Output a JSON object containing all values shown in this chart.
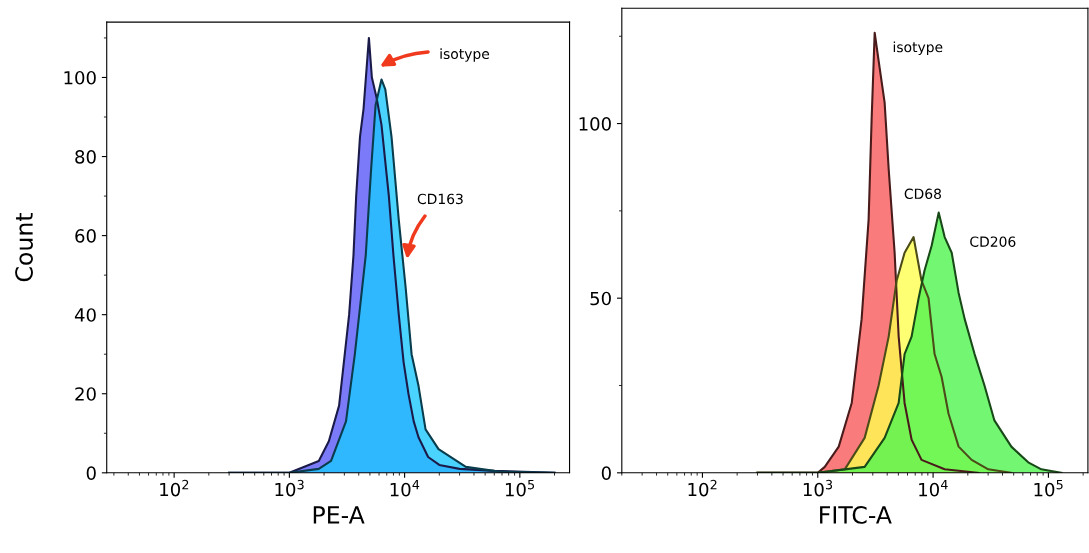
{
  "chart_data": [
    {
      "type": "area",
      "xlabel": "PE-A",
      "ylabel": "Count",
      "log": "x",
      "xlim": [
        26,
        270000
      ],
      "xticks": [
        {
          "value": 100,
          "label": "10$^{2}$"
        },
        {
          "value": 1000,
          "label": "10$^{3}$"
        },
        {
          "value": 10000,
          "label": "10$^{4}$"
        },
        {
          "value": 100000,
          "label": "10$^{5}$"
        }
      ],
      "ylim": [
        0,
        114
      ],
      "yticks": [
        0,
        20,
        40,
        60,
        80,
        100
      ],
      "grid": false,
      "series": [
        {
          "color": "#5a5af8",
          "x": [
            300,
            1000,
            1800,
            2200,
            2700,
            3300,
            3600,
            3800,
            4100,
            4400,
            4900,
            5200,
            5700,
            6300,
            7300,
            8000,
            8900,
            9800,
            10800,
            12000,
            13200,
            16000,
            20000,
            30000,
            60000,
            200000
          ],
          "values": [
            0,
            0,
            3,
            8,
            17,
            40,
            55,
            70,
            85,
            92,
            110,
            100,
            95,
            88,
            70,
            55,
            40,
            28,
            20,
            13,
            9,
            4,
            2,
            1,
            0.5,
            0
          ]
        },
        {
          "color": "#1ec8ff",
          "x": [
            300,
            1000,
            1800,
            2300,
            3100,
            3700,
            4600,
            5100,
            5600,
            6300,
            6800,
            7700,
            8900,
            10200,
            11500,
            13200,
            15200,
            19700,
            34000,
            66000,
            200000
          ],
          "values": [
            0,
            0,
            1,
            3,
            13,
            30,
            55,
            76,
            93,
            99.5,
            97,
            85,
            64,
            47,
            30,
            22,
            11,
            6,
            1.5,
            0.3,
            0
          ]
        }
      ],
      "annotations": [
        "isotype",
        "CD163"
      ]
    },
    {
      "type": "area",
      "xlabel": "FITC-A",
      "log": "x",
      "xlim": [
        20,
        220000
      ],
      "xticks": [
        {
          "value": 100,
          "label": "10$^{2}$"
        },
        {
          "value": 1000,
          "label": "10$^{3}$"
        },
        {
          "value": 10000,
          "label": "10$^{4}$"
        },
        {
          "value": 100000,
          "label": "10$^{5}$"
        }
      ],
      "ylim": [
        0,
        133
      ],
      "yticks": [
        0,
        50,
        100
      ],
      "grid": false,
      "series": [
        {
          "color": "#f85a5a",
          "x": [
            300,
            1000,
            1150,
            1520,
            1970,
            2400,
            2760,
            2930,
            3115,
            3370,
            3800,
            4120,
            4640,
            5030,
            5660,
            6510,
            7940,
            12600,
            24800
          ],
          "values": [
            0,
            0,
            1.7,
            7.5,
            20,
            44,
            72.5,
            101,
            126,
            118,
            106,
            87,
            63,
            39,
            20,
            9.5,
            3.7,
            1,
            0
          ]
        },
        {
          "color": "#ffff50",
          "x": [
            300,
            1000,
            1715,
            2550,
            3370,
            4120,
            4830,
            5660,
            6770,
            7940,
            9130,
            10300,
            11850,
            13600,
            16650,
            21600,
            30100,
            47700
          ],
          "values": [
            0,
            0,
            1,
            10,
            25,
            39,
            55,
            63,
            67.5,
            55,
            50,
            34,
            27.5,
            17,
            7.5,
            3.7,
            1,
            0
          ]
        },
        {
          "color": "#50f550",
          "x": [
            300,
            1000,
            2550,
            3800,
            5030,
            5660,
            6510,
            7490,
            8440,
            9710,
            11180,
            12600,
            14500,
            16650,
            18800,
            22900,
            27900,
            34000,
            47700,
            66800,
            86900,
            130000
          ],
          "values": [
            0,
            0,
            1.7,
            10,
            20,
            34,
            39,
            50,
            58,
            65,
            74.5,
            67.5,
            63,
            51.5,
            44,
            34,
            25,
            15,
            7.5,
            3,
            1,
            0
          ]
        }
      ],
      "annotations": [
        "isotype",
        "CD68",
        "CD206"
      ]
    }
  ]
}
